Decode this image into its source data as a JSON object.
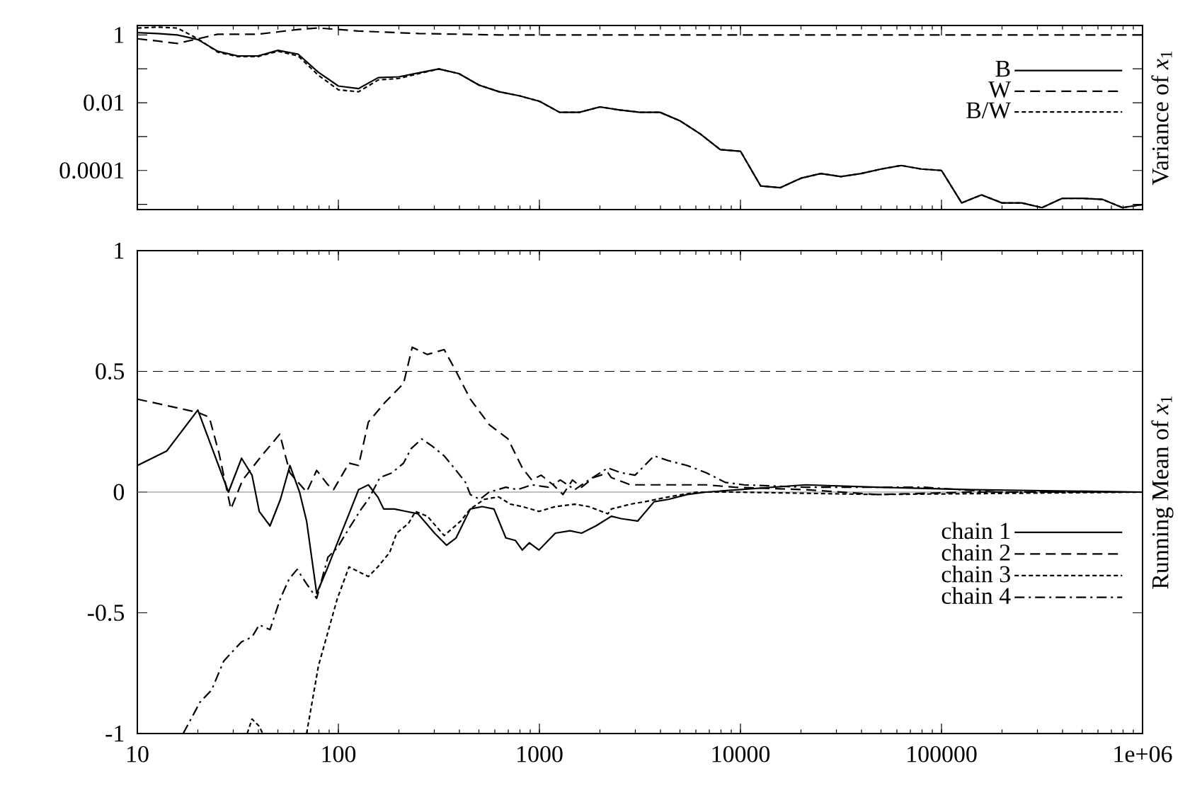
{
  "chart_data": [
    {
      "type": "line",
      "ylabel": "Variance of *x*$_{1}$",
      "log": "xy",
      "tick_labels": "y",
      "legend": "top right",
      "xlim": [
        10,
        1000000
      ],
      "ylim": [
        7e-06,
        1.9
      ],
      "xticks": [
        {
          "value": 10,
          "label": null
        },
        {
          "value": 100,
          "label": null
        },
        {
          "value": 1000,
          "label": null
        },
        {
          "value": 10000,
          "label": null
        },
        {
          "value": 100000,
          "label": null
        },
        {
          "value": 1000000,
          "label": null
        }
      ],
      "yticks": [
        1,
        {
          "value": 0.1,
          "label": null
        },
        0.01,
        {
          "value": 0.001,
          "label": null
        },
        0.0001,
        {
          "value": 1e-05,
          "label": null
        }
      ],
      "x": [
        10,
        12.6,
        15.8,
        20,
        25.1,
        31.6,
        39.8,
        50.1,
        63.1,
        79.4,
        100,
        126,
        158,
        200,
        251,
        316,
        398,
        501,
        631,
        794,
        1000,
        1260,
        1580,
        2000,
        2510,
        3160,
        3980,
        5010,
        6310,
        7940,
        10000,
        12600,
        15800,
        20000,
        25100,
        31600,
        39800,
        50100,
        63100,
        79400,
        100000,
        126000,
        158000,
        200000,
        251000,
        316000,
        398000,
        501000,
        631000,
        794000,
        1000000
      ],
      "series": [
        {
          "name": "B",
          "color": "#000000",
          "line_style": "solid",
          "values": [
            1.17,
            1.1,
            1.0,
            0.73,
            0.33,
            0.24,
            0.24,
            0.35,
            0.27,
            0.08,
            0.031,
            0.026,
            0.055,
            0.058,
            0.076,
            0.099,
            0.072,
            0.033,
            0.021,
            0.016,
            0.011,
            0.0052,
            0.0052,
            0.0075,
            0.0061,
            0.0052,
            0.0052,
            0.0029,
            0.0012,
            0.00041,
            0.00037,
            3.5e-05,
            3.1e-05,
            5.9e-05,
            8.1e-05,
            6.6e-05,
            8.1e-05,
            0.00011,
            0.00014,
            0.00011,
            0.0001,
            1.1e-05,
            1.9e-05,
            1.1e-05,
            1.1e-05,
            8e-06,
            1.5e-05,
            1.5e-05,
            1.4e-05,
            8e-06,
            9.9e-06
          ]
        },
        {
          "name": "W",
          "color": "#000000",
          "line_style": "dashed",
          "x": [
            10,
            12.6,
            15.8,
            20,
            25.1,
            31.6,
            39.8,
            50.1,
            63.1,
            79.4,
            100,
            126,
            158,
            251,
            398,
            631,
            1000000
          ],
          "values": [
            0.77,
            0.66,
            0.56,
            0.77,
            1.05,
            1.05,
            1.05,
            1.23,
            1.45,
            1.6,
            1.45,
            1.3,
            1.23,
            1.1,
            1.05,
            1.0,
            1.0
          ]
        },
        {
          "name": "B/W",
          "color": "#000000",
          "line_style": "dotted",
          "values": [
            1.6,
            1.7,
            1.6,
            0.77,
            0.31,
            0.23,
            0.23,
            0.33,
            0.24,
            0.065,
            0.024,
            0.021,
            0.047,
            0.052,
            0.072,
            0.099,
            0.072,
            0.033,
            0.021,
            0.016,
            0.011,
            0.0052,
            0.0052,
            0.0075,
            0.0061,
            0.0052,
            0.0052,
            0.0029,
            0.0012,
            0.00041,
            0.00037,
            3.5e-05,
            3.1e-05,
            5.9e-05,
            8.1e-05,
            6.6e-05,
            8.1e-05,
            0.00011,
            0.00014,
            0.00011,
            0.0001,
            1.1e-05,
            1.9e-05,
            1.1e-05,
            1.1e-05,
            8e-06,
            1.5e-05,
            1.5e-05,
            1.4e-05,
            8e-06,
            9.9e-06
          ]
        }
      ]
    },
    {
      "type": "line",
      "ylabel": "Running Mean of *x*$_{1}$",
      "log": "x",
      "legend": "bottom right",
      "xlim": [
        10,
        1000000
      ],
      "ylim": [
        -1,
        1
      ],
      "xticks": [
        10,
        100,
        1000,
        10000,
        100000,
        {
          "value": 1000000,
          "label": "1e+06"
        }
      ],
      "yticks": [
        -1,
        -0.5,
        0,
        0.5,
        1
      ],
      "ref_lines": [
        {
          "axis": "y",
          "value": 0.5,
          "color": "#000000",
          "line_style": "dashed"
        },
        {
          "axis": "y",
          "value": 0,
          "color": "#808080",
          "line_style": "solid"
        }
      ],
      "series": [
        {
          "name": "chain 1",
          "color": "#000000",
          "line_style": "solid",
          "x": [
            10,
            14,
            20,
            28.4,
            33,
            37.2,
            40.4,
            45.7,
            51.5,
            57.4,
            64.1,
            69.5,
            78,
            88.7,
            98.9,
            113,
            126,
            141,
            157,
            168,
            190,
            217,
            249,
            301,
            345,
            385,
            453,
            519,
            594,
            681,
            759,
            822,
            891,
            995,
            1200,
            1420,
            1620,
            1910,
            2280,
            2550,
            3080,
            3720,
            4390,
            5440,
            6760,
            21100,
            47800,
            142000,
            1000000
          ],
          "values": [
            0.11,
            0.17,
            0.34,
            0.0,
            0.14,
            0.07,
            -0.08,
            -0.14,
            -0.03,
            0.11,
            0.0,
            -0.12,
            -0.42,
            -0.31,
            -0.21,
            -0.09,
            0.01,
            0.03,
            -0.02,
            -0.07,
            -0.07,
            -0.08,
            -0.09,
            -0.17,
            -0.22,
            -0.19,
            -0.07,
            -0.06,
            -0.07,
            -0.19,
            -0.2,
            -0.24,
            -0.21,
            -0.24,
            -0.17,
            -0.16,
            -0.17,
            -0.14,
            -0.1,
            -0.11,
            -0.12,
            -0.04,
            -0.03,
            -0.01,
            0.0,
            0.03,
            0.02,
            0.01,
            0.0
          ]
        },
        {
          "name": "chain 2",
          "color": "#000000",
          "line_style": "dashed",
          "x": [
            10,
            20,
            22.8,
            25.5,
            29.2,
            33.4,
            41.5,
            51.1,
            57.4,
            69.5,
            78,
            88.7,
            94.6,
            113,
            126,
            141,
            170,
            211,
            233,
            277,
            336,
            385,
            453,
            562,
            698,
            822,
            916,
            1020,
            1170,
            1310,
            1460,
            1620,
            1860,
            2190,
            2280,
            2840,
            3720,
            4890,
            6760,
            9380,
            21100,
            47800,
            142000,
            1000000
          ],
          "values": [
            0.385,
            0.33,
            0.31,
            0.16,
            -0.07,
            0.05,
            0.15,
            0.24,
            0.08,
            0.0,
            0.09,
            0.03,
            0.01,
            0.12,
            0.11,
            0.29,
            0.37,
            0.45,
            0.6,
            0.57,
            0.59,
            0.5,
            0.385,
            0.28,
            0.22,
            0.1,
            0.05,
            0.07,
            0.03,
            -0.01,
            0.05,
            0.02,
            0.06,
            0.08,
            0.06,
            0.03,
            0.03,
            0.03,
            0.03,
            0.02,
            0.01,
            -0.01,
            0.0,
            0.0
          ]
        },
        {
          "name": "chain 3",
          "color": "#000000",
          "line_style": "dotted",
          "x": [
            35.2,
            37.2,
            40.4,
            42,
            55,
            69.5,
            79.6,
            88.7,
            98.9,
            113,
            141,
            157,
            180,
            195,
            223,
            242,
            277,
            336,
            406,
            453,
            532,
            627,
            718,
            822,
            995,
            1200,
            1500,
            1760,
            2190,
            2280,
            2840,
            3340,
            4390,
            6070,
            9380,
            47800,
            1000000
          ],
          "values": [
            -1.0,
            -0.94,
            -0.97,
            -1.0,
            null,
            -1.0,
            -0.72,
            -0.58,
            -0.44,
            -0.31,
            -0.35,
            -0.31,
            -0.25,
            -0.17,
            -0.13,
            -0.08,
            -0.1,
            -0.18,
            -0.12,
            -0.07,
            -0.03,
            -0.02,
            -0.05,
            -0.06,
            -0.08,
            -0.06,
            -0.05,
            -0.06,
            -0.09,
            -0.07,
            -0.05,
            -0.04,
            -0.02,
            0.0,
            0.0,
            -0.01,
            0.0
          ]
        },
        {
          "name": "chain 4",
          "color": "#000000",
          "line_style": "dashdot",
          "x": [
            16.9,
            20.5,
            23.4,
            26.9,
            33,
            37.2,
            40.4,
            45.7,
            51.5,
            56.9,
            62.4,
            69.5,
            78,
            88.7,
            98.9,
            113,
            130,
            141,
            161,
            185,
            211,
            230,
            260,
            293,
            336,
            385,
            429,
            453,
            505,
            562,
            681,
            780,
            916,
            1110,
            1270,
            1500,
            1760,
            2190,
            2550,
            2990,
            3720,
            4390,
            5440,
            6760,
            8410,
            10400,
            21100,
            82200,
            186000,
            1000000
          ],
          "values": [
            -1.0,
            -0.87,
            -0.82,
            -0.7,
            -0.62,
            -0.6,
            -0.55,
            -0.57,
            -0.44,
            -0.36,
            -0.32,
            -0.38,
            -0.44,
            -0.27,
            -0.23,
            -0.15,
            -0.07,
            -0.03,
            0.06,
            0.08,
            0.12,
            0.18,
            0.22,
            0.19,
            0.15,
            0.09,
            0.04,
            -0.01,
            -0.03,
            0.0,
            0.02,
            0.01,
            0.03,
            0.02,
            0.05,
            0.01,
            0.05,
            0.1,
            0.08,
            0.07,
            0.15,
            0.13,
            0.11,
            0.08,
            0.04,
            0.03,
            0.02,
            0.02,
            0.0,
            0.0
          ]
        }
      ]
    }
  ]
}
